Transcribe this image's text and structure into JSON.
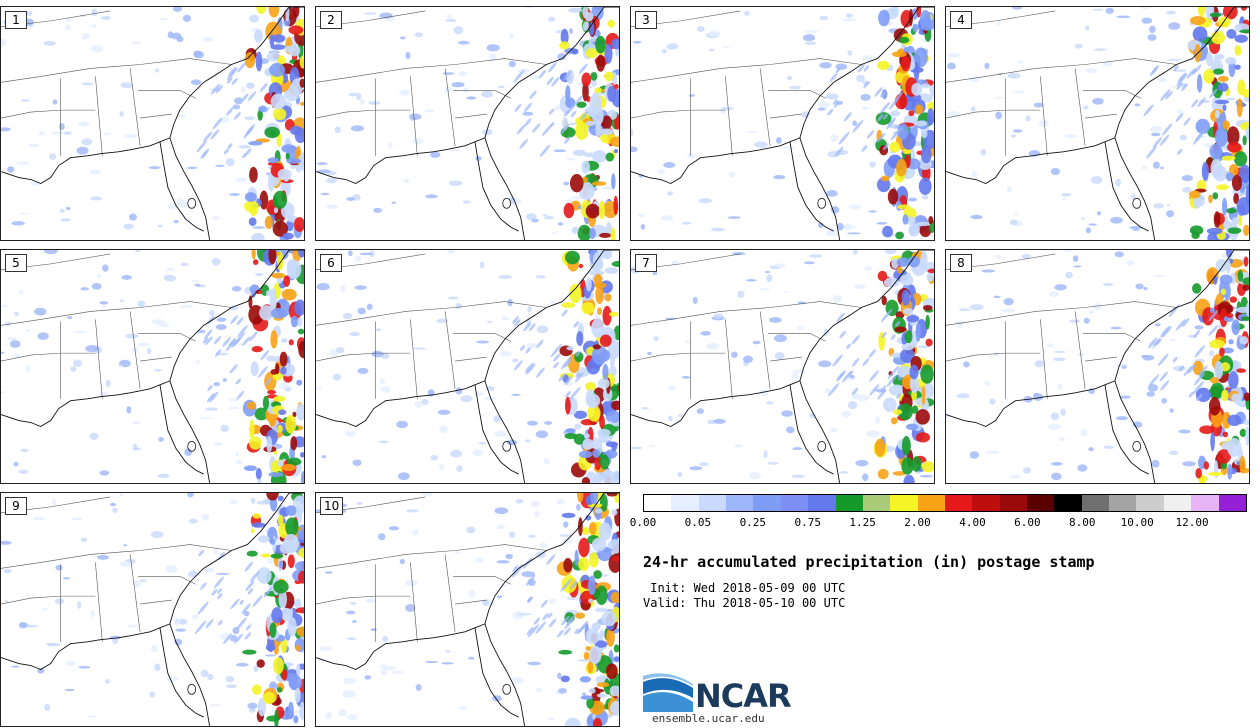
{
  "panels": [
    {
      "label": "1"
    },
    {
      "label": "2"
    },
    {
      "label": "3"
    },
    {
      "label": "4"
    },
    {
      "label": "5"
    },
    {
      "label": "6"
    },
    {
      "label": "7"
    },
    {
      "label": "8"
    },
    {
      "label": "9"
    },
    {
      "label": "10"
    }
  ],
  "legend": {
    "colors": [
      "#ffffff",
      "#e6efff",
      "#c9dafc",
      "#9db7fa",
      "#7f9cf7",
      "#7d8ff3",
      "#6479ed",
      "#159a2a",
      "#aacc78",
      "#f4f426",
      "#f8a216",
      "#e41919",
      "#bf0e0e",
      "#9a0a0a",
      "#5a0000",
      "#000000",
      "#6f6f6f",
      "#a3a3a3",
      "#cdcdcd",
      "#f0f0f0",
      "#e7b5f5",
      "#9421d6"
    ],
    "ticks": [
      "0.00",
      "0.05",
      "0.25",
      "0.75",
      "1.25",
      "2.00",
      "4.00",
      "6.00",
      "8.00",
      "10.00",
      "12.00"
    ],
    "title": "24-hr accumulated precipitation (in) postage stamp",
    "init": " Init: Wed 2018-05-09 00 UTC",
    "valid": "Valid: Thu 2018-05-10 00 UTC"
  },
  "branding": {
    "logo_text": "NCAR",
    "site": "ensemble.ucar.edu"
  }
}
